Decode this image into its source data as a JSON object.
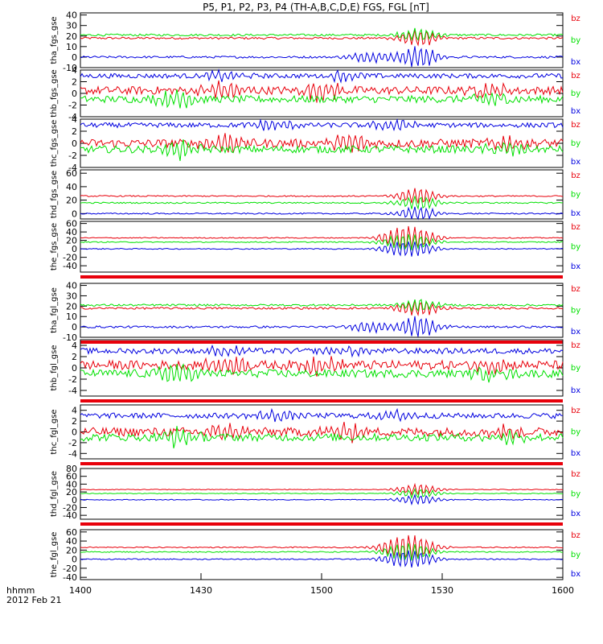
{
  "chart_data": {
    "type": "line",
    "title": "P5, P1, P2, P3, P4 (TH-A,B,C,D,E) FGS, FGL [nT]",
    "x_ticks": [
      "1400",
      "1430",
      "1500",
      "1530",
      "1600"
    ],
    "x_range": [
      "14:00",
      "16:00"
    ],
    "x_label_lines": [
      "hhmm",
      "2012 Feb 21"
    ],
    "colors": {
      "bz": "#e8000b",
      "by": "#00e000",
      "bx": "#0000e0"
    },
    "panels": [
      {
        "label": "tha_fgs_gse",
        "yticks": [
          "40",
          "30",
          "20",
          "10",
          "0",
          "-10"
        ],
        "ylim": [
          -10,
          42
        ],
        "legend": [
          "bz",
          "by",
          "bx"
        ],
        "bar_below": false,
        "series": [
          {
            "name": "bz",
            "level": 18,
            "noise": 1.0,
            "events": [
              [
                70,
                8
              ]
            ]
          },
          {
            "name": "by",
            "level": 21,
            "noise": 1.0,
            "events": [
              [
                70,
                6
              ]
            ]
          },
          {
            "name": "bx",
            "level": 0,
            "noise": 1.0,
            "events": [
              [
                60,
                5
              ],
              [
                70,
                10
              ]
            ]
          }
        ]
      },
      {
        "label": "thb_fgs_gse",
        "yticks": [
          "4",
          "2",
          "0",
          "-2",
          "-4"
        ],
        "ylim": [
          -4,
          4
        ],
        "legend": [
          "bz",
          "by",
          "bx"
        ],
        "bar_below": false,
        "series": [
          {
            "name": "bz",
            "level": 0.5,
            "noise": 0.7,
            "events": [
              [
                30,
                1.5
              ],
              [
                50,
                1.5
              ],
              [
                85,
                1
              ]
            ]
          },
          {
            "name": "by",
            "level": -1,
            "noise": 0.6,
            "events": [
              [
                20,
                1.5
              ],
              [
                85,
                1
              ]
            ]
          },
          {
            "name": "bx",
            "level": 3,
            "noise": 0.4,
            "events": [
              [
                30,
                0.8
              ],
              [
                55,
                0.8
              ]
            ]
          }
        ]
      },
      {
        "label": "thc_fgs_gse",
        "yticks": [
          "4",
          "2",
          "0",
          "-2",
          "-4"
        ],
        "ylim": [
          -4,
          4
        ],
        "legend": [
          "bz",
          "by",
          "bx"
        ],
        "bar_below": false,
        "series": [
          {
            "name": "bz",
            "level": 0,
            "noise": 0.7,
            "events": [
              [
                30,
                1.5
              ],
              [
                55,
                1.5
              ],
              [
                88,
                1
              ]
            ]
          },
          {
            "name": "by",
            "level": -1,
            "noise": 0.6,
            "events": [
              [
                20,
                1.5
              ],
              [
                88,
                1
              ]
            ]
          },
          {
            "name": "bx",
            "level": 3,
            "noise": 0.4,
            "events": [
              [
                40,
                0.8
              ],
              [
                65,
                0.8
              ]
            ]
          }
        ]
      },
      {
        "label": "thd_fgs_gse",
        "yticks": [
          "60",
          "40",
          "20",
          "0"
        ],
        "ylim": [
          -8,
          65
        ],
        "legend": [
          "bz",
          "by",
          "bx"
        ],
        "bar_below": false,
        "series": [
          {
            "name": "bz",
            "level": 26,
            "noise": 1.0,
            "events": [
              [
                70,
                12
              ]
            ]
          },
          {
            "name": "by",
            "level": 16,
            "noise": 1.0,
            "events": [
              [
                70,
                10
              ]
            ]
          },
          {
            "name": "bx",
            "level": 0,
            "noise": 1.0,
            "events": [
              [
                70,
                10
              ]
            ]
          }
        ]
      },
      {
        "label": "the_fgs_gse",
        "yticks": [
          "60",
          "40",
          "20",
          "0",
          "-20",
          "-40"
        ],
        "ylim": [
          -55,
          65
        ],
        "legend": [
          "bz",
          "by",
          "bx"
        ],
        "bar_below": true,
        "series": [
          {
            "name": "bz",
            "level": 26,
            "noise": 1.2,
            "events": [
              [
                66,
                18
              ],
              [
                70,
                18
              ]
            ]
          },
          {
            "name": "by",
            "level": 16,
            "noise": 1.2,
            "events": [
              [
                66,
                12
              ],
              [
                70,
                12
              ]
            ]
          },
          {
            "name": "bx",
            "level": 0,
            "noise": 1.2,
            "events": [
              [
                66,
                12
              ],
              [
                70,
                12
              ]
            ]
          }
        ]
      },
      {
        "label": "tha_fgl_gse",
        "yticks": [
          "40",
          "30",
          "20",
          "10",
          "0",
          "-10"
        ],
        "ylim": [
          -10,
          42
        ],
        "legend": [
          "bz",
          "by",
          "bx"
        ],
        "bar_below": true,
        "series": [
          {
            "name": "bz",
            "level": 18,
            "noise": 1.0,
            "events": [
              [
                70,
                8
              ]
            ]
          },
          {
            "name": "by",
            "level": 21,
            "noise": 1.0,
            "events": [
              [
                70,
                6
              ]
            ]
          },
          {
            "name": "bx",
            "level": 0,
            "noise": 1.0,
            "events": [
              [
                60,
                5
              ],
              [
                70,
                10
              ]
            ]
          }
        ]
      },
      {
        "label": "thb_fgl_gse",
        "yticks": [
          "4",
          "2",
          "0",
          "-2",
          "-4"
        ],
        "ylim": [
          -5,
          5
        ],
        "legend": [
          "bz",
          "by",
          "bx"
        ],
        "bar_below": true,
        "series": [
          {
            "name": "bz",
            "level": 0.5,
            "noise": 0.8,
            "events": [
              [
                30,
                1.5
              ],
              [
                50,
                1.5
              ],
              [
                85,
                1
              ]
            ]
          },
          {
            "name": "by",
            "level": -1,
            "noise": 0.7,
            "events": [
              [
                20,
                1.5
              ],
              [
                85,
                1
              ]
            ]
          },
          {
            "name": "bx",
            "level": 3,
            "noise": 0.5,
            "events": [
              [
                30,
                0.8
              ],
              [
                55,
                0.8
              ]
            ]
          }
        ]
      },
      {
        "label": "thc_fgl_gse",
        "yticks": [
          "4",
          "2",
          "0",
          "-2",
          "-4"
        ],
        "ylim": [
          -5,
          5
        ],
        "legend": [
          "bz",
          "by",
          "bx"
        ],
        "bar_below": true,
        "series": [
          {
            "name": "bz",
            "level": 0,
            "noise": 0.8,
            "events": [
              [
                30,
                1.5
              ],
              [
                55,
                1.5
              ],
              [
                88,
                1
              ]
            ]
          },
          {
            "name": "by",
            "level": -1,
            "noise": 0.7,
            "events": [
              [
                20,
                1.5
              ],
              [
                88,
                1
              ]
            ]
          },
          {
            "name": "bx",
            "level": 3,
            "noise": 0.5,
            "events": [
              [
                40,
                0.8
              ],
              [
                65,
                0.8
              ]
            ]
          }
        ]
      },
      {
        "label": "thd_fgl_gse",
        "yticks": [
          "80",
          "60",
          "40",
          "20",
          "0",
          "-20",
          "-40"
        ],
        "ylim": [
          -50,
          80
        ],
        "legend": [
          "bz",
          "by",
          "bx"
        ],
        "bar_below": true,
        "series": [
          {
            "name": "bz",
            "level": 26,
            "noise": 1.0,
            "events": [
              [
                70,
                14
              ]
            ]
          },
          {
            "name": "by",
            "level": 16,
            "noise": 1.0,
            "events": [
              [
                70,
                12
              ]
            ]
          },
          {
            "name": "bx",
            "level": 0,
            "noise": 1.0,
            "events": [
              [
                70,
                12
              ]
            ]
          }
        ]
      },
      {
        "label": "the_fgl_gse",
        "yticks": [
          "60",
          "40",
          "20",
          "0",
          "-20",
          "-40"
        ],
        "ylim": [
          -45,
          65
        ],
        "legend": [
          "bz",
          "by",
          "bx"
        ],
        "bar_below": false,
        "series": [
          {
            "name": "bz",
            "level": 26,
            "noise": 1.2,
            "events": [
              [
                66,
                18
              ],
              [
                70,
                18
              ]
            ]
          },
          {
            "name": "by",
            "level": 16,
            "noise": 1.2,
            "events": [
              [
                66,
                12
              ],
              [
                70,
                12
              ]
            ]
          },
          {
            "name": "bx",
            "level": 0,
            "noise": 1.2,
            "events": [
              [
                66,
                12
              ],
              [
                70,
                12
              ]
            ]
          }
        ]
      }
    ]
  }
}
